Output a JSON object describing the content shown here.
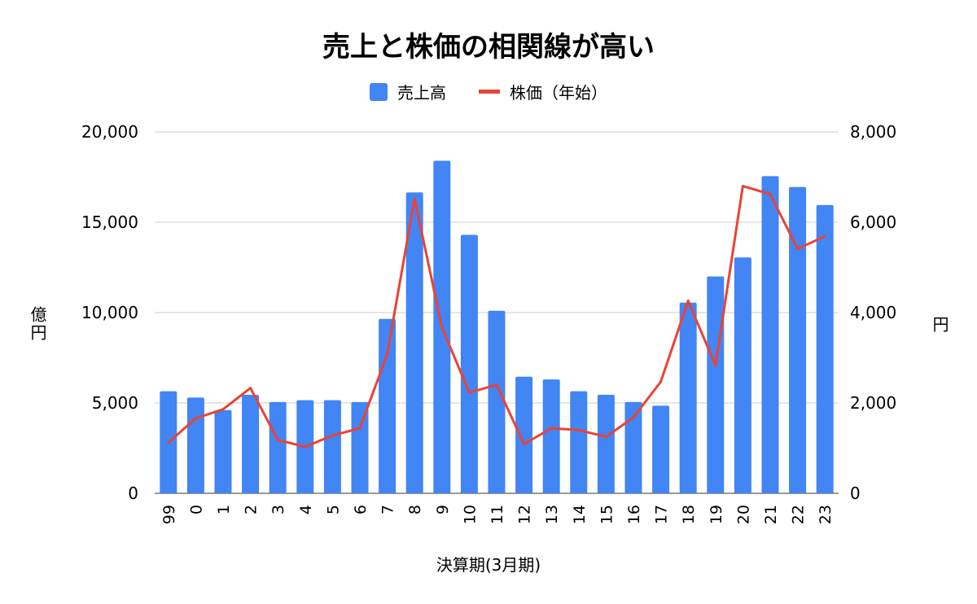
{
  "chart_data": {
    "type": "bar",
    "title": "売上と株価の相関線が高い",
    "xlabel": "決算期(3月期)",
    "ylabel": "億円",
    "y2label": "円",
    "categories": [
      "99",
      "0",
      "1",
      "2",
      "3",
      "4",
      "5",
      "6",
      "7",
      "8",
      "9",
      "10",
      "11",
      "12",
      "13",
      "14",
      "15",
      "16",
      "17",
      "18",
      "19",
      "20",
      "21",
      "22",
      "23"
    ],
    "series": [
      {
        "name": "売上高",
        "type": "bar",
        "axis": "left",
        "color": "#4285F4",
        "values": [
          5650,
          5300,
          4600,
          5450,
          5050,
          5150,
          5150,
          5050,
          9650,
          16650,
          18400,
          14300,
          10100,
          6450,
          6300,
          5650,
          5450,
          5050,
          4850,
          10550,
          12000,
          13050,
          17550,
          16950,
          15950
        ]
      },
      {
        "name": "株価（年始）",
        "type": "line",
        "axis": "right",
        "color": "#EA4335",
        "values": [
          1120,
          1660,
          1860,
          2330,
          1180,
          1030,
          1280,
          1440,
          3080,
          6520,
          3670,
          2230,
          2400,
          1090,
          1440,
          1400,
          1250,
          1680,
          2470,
          4260,
          2830,
          6800,
          6620,
          5410,
          5690
        ]
      }
    ],
    "ylim": [
      0,
      20000
    ],
    "y2lim": [
      0,
      8000
    ],
    "y_ticks": [
      "0",
      "5,000",
      "10,000",
      "15,000",
      "20,000"
    ],
    "y2_ticks": [
      "0",
      "2,000",
      "4,000",
      "6,000",
      "8,000"
    ],
    "grid": true,
    "legend": "top-center"
  },
  "colors": {
    "grid": "#cccccc",
    "axis": "#333333"
  }
}
